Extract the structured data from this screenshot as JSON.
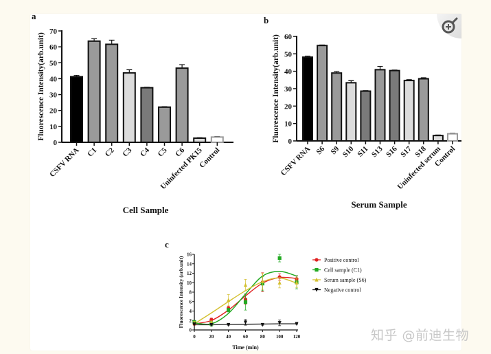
{
  "figure": {
    "watermark": "知乎 @前迪生物",
    "zoom_button_icon": "zoom-in-icon"
  },
  "chart_data": [
    {
      "panel_label": "a",
      "type": "bar",
      "title": "",
      "xlabel": "Cell Sample",
      "ylabel": "Fluorescence Intensity(arb.unit)",
      "ylim": [
        0,
        70
      ],
      "yticks": [
        0,
        10,
        20,
        30,
        40,
        50,
        60,
        70
      ],
      "categories": [
        "CSFV RNA",
        "C1",
        "C2",
        "C3",
        "C4",
        "C5",
        "C6",
        "Uninfected PK15",
        "Control"
      ],
      "values": [
        41.2,
        63.6,
        61.6,
        43.6,
        34.3,
        22.1,
        46.6,
        2.6,
        3.3
      ],
      "errors": [
        0.9,
        1.5,
        2.6,
        2.0,
        0.3,
        0.3,
        2.2,
        0.3,
        0.3
      ],
      "colors": [
        "#000000",
        "#9a9a9a",
        "#9a9a9a",
        "#dcdcdc",
        "#7a7a7a",
        "#9a9a9a",
        "#9a9a9a",
        "#dcdcdc",
        "#ffffff"
      ]
    },
    {
      "panel_label": "b",
      "type": "bar",
      "title": "",
      "xlabel": "Serum Sample",
      "ylabel": "Fluorescence Intensity(arb.unit)",
      "ylim": [
        0,
        60
      ],
      "yticks": [
        0,
        10,
        20,
        30,
        40,
        50,
        60
      ],
      "categories": [
        "CSFV RNA",
        "S6",
        "S9",
        "S10",
        "S11",
        "S13",
        "S16",
        "S17",
        "S18",
        "Uninfected serum",
        "Control"
      ],
      "values": [
        48.1,
        54.8,
        39.0,
        33.4,
        28.6,
        40.9,
        40.4,
        34.7,
        35.7,
        3.1,
        4.1
      ],
      "errors": [
        0.6,
        0.3,
        0.8,
        1.2,
        0.3,
        1.9,
        0.3,
        0.5,
        0.6,
        0.3,
        0.3
      ],
      "colors": [
        "#000000",
        "#9a9a9a",
        "#9a9a9a",
        "#dcdcdc",
        "#7a7a7a",
        "#9a9a9a",
        "#7a7a7a",
        "#dcdcdc",
        "#9a9a9a",
        "#dcdcdc",
        "#ffffff"
      ]
    },
    {
      "panel_label": "c",
      "type": "line",
      "title": "",
      "xlabel": "Time (min)",
      "ylabel": "Fluorescence Intensity (arb.unit)",
      "xlim": [
        0,
        120
      ],
      "ylim": [
        0,
        16
      ],
      "xticks": [
        0,
        20,
        40,
        60,
        80,
        100,
        120
      ],
      "yticks": [
        0,
        2,
        4,
        6,
        8,
        10,
        12,
        14,
        16
      ],
      "legend_position": "right",
      "x": [
        0,
        20,
        40,
        60,
        80,
        100,
        120
      ],
      "series": [
        {
          "name": "Positive control",
          "color": "#e02020",
          "marker": "circle",
          "values": [
            1.3,
            2.2,
            4.6,
            6.5,
            10.1,
            11.2,
            10.8
          ],
          "errors": [
            0.3,
            0.3,
            0.4,
            1.1,
            2.0,
            0.7,
            0.6
          ]
        },
        {
          "name": "Cell sample (C1)",
          "color": "#22aa22",
          "marker": "square",
          "values": [
            1.7,
            1.3,
            4.2,
            5.9,
            9.8,
            15.2,
            10.1
          ],
          "errors": [
            0.3,
            0.5,
            0.4,
            1.7,
            1.5,
            0.8,
            1.4
          ]
        },
        {
          "name": "Serum sample (S6)",
          "color": "#d4c030",
          "marker": "triangle-up",
          "values": [
            1.5,
            1.6,
            6.3,
            9.5,
            10.3,
            10.0,
            10.0
          ],
          "errors": [
            0.3,
            0.3,
            1.2,
            1.2,
            1.7,
            1.1,
            1.0
          ]
        },
        {
          "name": "Negative control",
          "color": "#111111",
          "marker": "triangle-down",
          "values": [
            1.2,
            1.1,
            1.1,
            1.6,
            1.1,
            1.5,
            1.3
          ],
          "errors": [
            0.1,
            0.1,
            0.1,
            0.6,
            0.1,
            0.6,
            0.1
          ]
        }
      ],
      "fit_curves": [
        {
          "name": "Positive control",
          "color": "#e02020",
          "values": [
            1.3,
            2.0,
            4.2,
            7.2,
            9.9,
            11.1,
            10.9
          ]
        },
        {
          "name": "Cell sample (C1)",
          "color": "#22aa22",
          "values": [
            1.5,
            1.3,
            3.5,
            7.6,
            11.4,
            12.4,
            11.4
          ]
        },
        {
          "name": "Serum sample (S6)",
          "color": "#d4c030",
          "values": [
            1.3,
            3.6,
            6.0,
            8.3,
            10.2,
            11.0,
            9.9
          ]
        },
        {
          "name": "Negative control",
          "color": "#333333",
          "values": [
            1.1,
            1.1,
            1.15,
            1.2,
            1.25,
            1.3,
            1.3
          ]
        }
      ]
    }
  ]
}
